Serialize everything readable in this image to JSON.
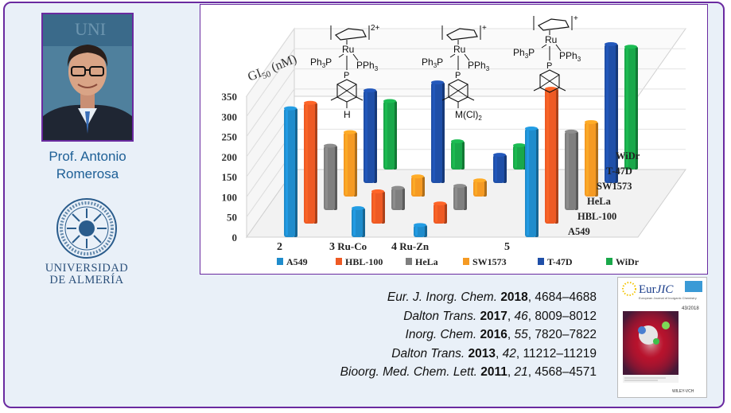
{
  "person": {
    "name_line1": "Prof. Antonio",
    "name_line2": "Romerosa"
  },
  "university": {
    "line1": "UNIVERSIDAD",
    "line2": "DE ALMERÍA"
  },
  "chart_data": {
    "type": "bar",
    "ylabel_main": "GI",
    "ylabel_sub": "50",
    "ylabel_unit": " (nM)",
    "yticks": [
      "350",
      "300",
      "250",
      "200",
      "150",
      "100",
      "50",
      "0"
    ],
    "ylim": [
      0,
      350
    ],
    "categories": [
      {
        "num": "2",
        "name": ""
      },
      {
        "num": "3",
        "name": " Ru-Co"
      },
      {
        "num": "4",
        "name": " Ru-Zn"
      },
      {
        "num": "5",
        "name": ""
      }
    ],
    "depth_labels": [
      "A549",
      "HBL-100",
      "HeLa",
      "SW1573",
      "T-47D",
      "WiDr"
    ],
    "series": [
      {
        "name": "A549",
        "color": "#1f8ccc",
        "values": [
          320,
          72,
          30,
          270
        ]
      },
      {
        "name": "HBL-100",
        "color": "#ee5a24",
        "values": [
          300,
          80,
          50,
          335
        ]
      },
      {
        "name": "HeLa",
        "color": "#7f7f7f",
        "values": [
          160,
          55,
          60,
          195
        ]
      },
      {
        "name": "SW1573",
        "color": "#f59a23",
        "values": [
          160,
          50,
          40,
          185
        ]
      },
      {
        "name": "T-47D",
        "color": "#1f4fa8",
        "values": [
          230,
          250,
          70,
          345
        ]
      },
      {
        "name": "WiDr",
        "color": "#19a84a",
        "values": [
          170,
          70,
          60,
          305
        ]
      }
    ],
    "structures": [
      {
        "charge": "2+",
        "left": "Ph",
        "left_sub": "3",
        "left_tail": "P",
        "right": "PPh",
        "right_sub": "3",
        "metal": "Ru",
        "bridge": "P",
        "tail": "H"
      },
      {
        "charge": "+",
        "left": "Ph",
        "left_sub": "3",
        "left_tail": "P",
        "right": "PPh",
        "right_sub": "3",
        "metal": "Ru",
        "bridge": "P",
        "tail": "M(Cl)",
        "tail_sub": "2"
      },
      {
        "charge": "+",
        "left": "Ph",
        "left_sub": "3",
        "left_tail": "P",
        "right": "PPh",
        "right_sub": "3",
        "metal": "Ru",
        "bridge": "P",
        "tail": ""
      }
    ]
  },
  "references": [
    {
      "journal": "Eur. J. Inorg. Chem.",
      "year": "2018",
      "volume": "",
      "pages": ", 4684–4688"
    },
    {
      "journal": "Dalton Trans.",
      "year": "2017",
      "volume": "46",
      "pages": ", 8009–8012"
    },
    {
      "journal": "Inorg. Chem.",
      "year": "2016",
      "volume": "55",
      "pages": ", 7820–7822"
    },
    {
      "journal": "Dalton Trans.",
      "year": "2013",
      "volume": "42",
      "pages": ", 11212–11219"
    },
    {
      "journal": "Bioorg. Med. Chem. Lett.",
      "year": "2011",
      "volume": "21",
      "pages": ", 4568–4571"
    }
  ],
  "cover": {
    "logo_a": "Eur",
    "logo_b": "JIC",
    "subtitle": "European Journal of Inorganic Chemistry",
    "issue": "43/2018",
    "publisher": "WILEY-VCH"
  },
  "colors": {
    "frame_border": "#6a2aa0",
    "name_text": "#1d5f96",
    "panel_bg": "#e9f0f8"
  }
}
